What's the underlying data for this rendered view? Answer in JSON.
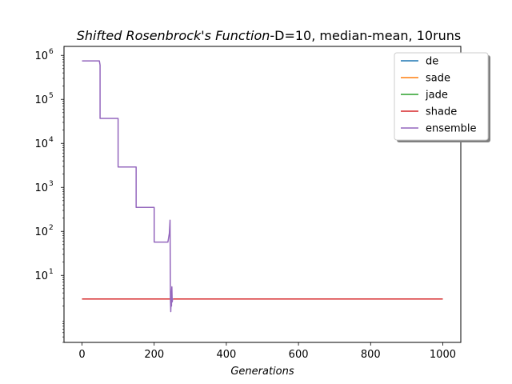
{
  "chart_data": {
    "type": "line",
    "title": {
      "italic_part": "Shifted Rosenbrock's Function",
      "rest": "-D=10, median-mean, 10runs"
    },
    "xlabel": "Generations",
    "ylabel": "",
    "xlim": [
      -50,
      1050
    ],
    "ylim": [
      0.3,
      1600000
    ],
    "yscale": "log",
    "x_ticks": [
      0,
      200,
      400,
      600,
      800,
      1000
    ],
    "y_ticks": [
      {
        "base": "10",
        "exp": "1",
        "value": 10
      },
      {
        "base": "10",
        "exp": "2",
        "value": 100
      },
      {
        "base": "10",
        "exp": "3",
        "value": 1000
      },
      {
        "base": "10",
        "exp": "4",
        "value": 10000
      },
      {
        "base": "10",
        "exp": "5",
        "value": 100000
      },
      {
        "base": "10",
        "exp": "6",
        "value": 1000000
      }
    ],
    "grid": false,
    "legend_position": "top-right",
    "series": [
      {
        "name": "de",
        "color": "#1f77b4",
        "x": [
          0,
          1000
        ],
        "y": [
          2.9,
          2.9
        ]
      },
      {
        "name": "sade",
        "color": "#ff7f0e",
        "x": [
          0,
          1000
        ],
        "y": [
          2.9,
          2.9
        ]
      },
      {
        "name": "jade",
        "color": "#2ca02c",
        "x": [
          0,
          1000
        ],
        "y": [
          2.9,
          2.9
        ]
      },
      {
        "name": "shade",
        "color": "#d62728",
        "x": [
          0,
          1000
        ],
        "y": [
          2.9,
          2.9
        ]
      },
      {
        "name": "ensemble",
        "color": "#9467bd",
        "x": [
          0,
          48,
          50,
          50,
          98,
          100,
          100,
          148,
          150,
          150,
          198,
          200,
          200,
          238,
          242,
          244,
          245,
          246,
          247,
          248,
          248,
          249,
          250,
          251,
          252,
          253
        ],
        "y": [
          750000,
          750000,
          600000,
          37000,
          37000,
          37000,
          2900,
          2900,
          2900,
          350,
          350,
          350,
          57,
          57,
          90,
          180,
          3,
          1.5,
          3,
          2,
          4,
          5.5,
          2.5,
          2.9,
          2.9,
          2.9
        ]
      }
    ]
  }
}
